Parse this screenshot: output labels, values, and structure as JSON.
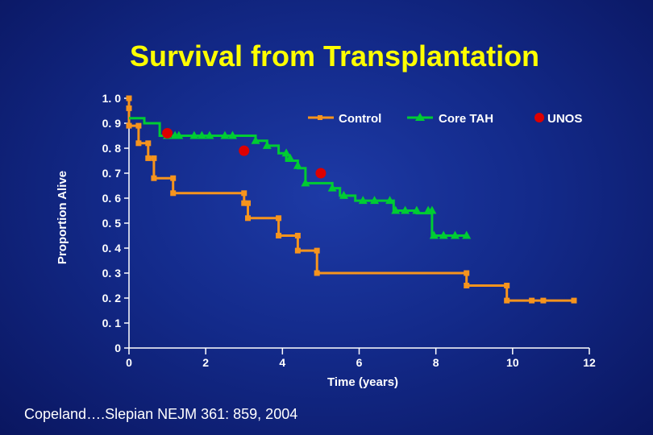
{
  "chart_data": {
    "type": "line",
    "title": "Survival from Transplantation",
    "xlabel": "Time (years)",
    "ylabel": "Proportion Alive",
    "xlim": [
      0,
      12
    ],
    "ylim": [
      0,
      1.0
    ],
    "x_ticks": [
      {
        "value": 0,
        "label": "0"
      },
      {
        "value": 2,
        "label": "2"
      },
      {
        "value": 4,
        "label": "4"
      },
      {
        "value": 6,
        "label": "6"
      },
      {
        "value": 8,
        "label": "8"
      },
      {
        "value": 10,
        "label": "10"
      },
      {
        "value": 12,
        "label": "12"
      }
    ],
    "y_ticks": [
      {
        "value": 0,
        "label": "0"
      },
      {
        "value": 0.1,
        "label": "0. 1"
      },
      {
        "value": 0.2,
        "label": "0. 2"
      },
      {
        "value": 0.3,
        "label": "0. 3"
      },
      {
        "value": 0.4,
        "label": "0. 4"
      },
      {
        "value": 0.5,
        "label": "0. 5"
      },
      {
        "value": 0.6,
        "label": "0. 6"
      },
      {
        "value": 0.7,
        "label": "0. 7"
      },
      {
        "value": 0.8,
        "label": "0. 8"
      },
      {
        "value": 0.9,
        "label": "0. 9"
      },
      {
        "value": 1.0,
        "label": "1. 0"
      }
    ],
    "legend_position": "top-right",
    "series": [
      {
        "name": "Control",
        "color": "#f7941d",
        "marker": "square",
        "steps": [
          [
            0,
            1.0
          ],
          [
            0,
            0.96
          ],
          [
            0,
            0.89
          ],
          [
            0.25,
            0.89
          ],
          [
            0.25,
            0.82
          ],
          [
            0.5,
            0.82
          ],
          [
            0.5,
            0.76
          ],
          [
            0.65,
            0.76
          ],
          [
            0.65,
            0.68
          ],
          [
            1.15,
            0.68
          ],
          [
            1.15,
            0.62
          ],
          [
            3.0,
            0.62
          ],
          [
            3.0,
            0.58
          ],
          [
            3.1,
            0.58
          ],
          [
            3.1,
            0.52
          ],
          [
            3.9,
            0.52
          ],
          [
            3.9,
            0.45
          ],
          [
            4.4,
            0.45
          ],
          [
            4.4,
            0.39
          ],
          [
            4.9,
            0.39
          ],
          [
            4.9,
            0.3
          ],
          [
            8.8,
            0.3
          ],
          [
            8.8,
            0.25
          ],
          [
            9.85,
            0.25
          ],
          [
            9.85,
            0.19
          ],
          [
            11.6,
            0.19
          ]
        ],
        "markers": [
          [
            0,
            1.0
          ],
          [
            0,
            0.96
          ],
          [
            0,
            0.89
          ],
          [
            0.25,
            0.89
          ],
          [
            0.25,
            0.82
          ],
          [
            0.5,
            0.82
          ],
          [
            0.5,
            0.76
          ],
          [
            0.65,
            0.76
          ],
          [
            0.65,
            0.68
          ],
          [
            1.15,
            0.68
          ],
          [
            1.15,
            0.62
          ],
          [
            3.0,
            0.62
          ],
          [
            3.0,
            0.58
          ],
          [
            3.1,
            0.58
          ],
          [
            3.1,
            0.52
          ],
          [
            3.9,
            0.52
          ],
          [
            3.9,
            0.45
          ],
          [
            4.4,
            0.45
          ],
          [
            4.4,
            0.39
          ],
          [
            4.9,
            0.39
          ],
          [
            4.9,
            0.3
          ],
          [
            8.8,
            0.3
          ],
          [
            8.8,
            0.25
          ],
          [
            9.85,
            0.25
          ],
          [
            9.85,
            0.19
          ],
          [
            10.5,
            0.19
          ],
          [
            10.8,
            0.19
          ],
          [
            11.6,
            0.19
          ]
        ]
      },
      {
        "name": "Core TAH",
        "color": "#00cc33",
        "marker": "triangle",
        "steps": [
          [
            0,
            0.92
          ],
          [
            0.4,
            0.92
          ],
          [
            0.4,
            0.9
          ],
          [
            0.8,
            0.9
          ],
          [
            0.8,
            0.85
          ],
          [
            3.3,
            0.85
          ],
          [
            3.3,
            0.83
          ],
          [
            3.6,
            0.83
          ],
          [
            3.6,
            0.81
          ],
          [
            3.9,
            0.81
          ],
          [
            3.9,
            0.78
          ],
          [
            4.1,
            0.78
          ],
          [
            4.1,
            0.75
          ],
          [
            4.4,
            0.75
          ],
          [
            4.4,
            0.72
          ],
          [
            4.6,
            0.72
          ],
          [
            4.6,
            0.66
          ],
          [
            5.3,
            0.66
          ],
          [
            5.3,
            0.64
          ],
          [
            5.5,
            0.64
          ],
          [
            5.5,
            0.61
          ],
          [
            5.9,
            0.61
          ],
          [
            5.9,
            0.59
          ],
          [
            6.9,
            0.59
          ],
          [
            6.9,
            0.55
          ],
          [
            7.5,
            0.55
          ],
          [
            7.5,
            0.54
          ],
          [
            7.9,
            0.54
          ],
          [
            7.9,
            0.45
          ],
          [
            8.8,
            0.45
          ]
        ],
        "markers": [
          [
            1.0,
            0.85
          ],
          [
            1.2,
            0.85
          ],
          [
            1.3,
            0.85
          ],
          [
            1.7,
            0.85
          ],
          [
            1.9,
            0.85
          ],
          [
            2.1,
            0.85
          ],
          [
            2.5,
            0.85
          ],
          [
            2.7,
            0.85
          ],
          [
            3.3,
            0.83
          ],
          [
            3.6,
            0.81
          ],
          [
            4.1,
            0.78
          ],
          [
            4.2,
            0.76
          ],
          [
            4.4,
            0.73
          ],
          [
            4.6,
            0.66
          ],
          [
            5.3,
            0.64
          ],
          [
            5.6,
            0.61
          ],
          [
            6.1,
            0.59
          ],
          [
            6.4,
            0.59
          ],
          [
            6.8,
            0.59
          ],
          [
            6.95,
            0.55
          ],
          [
            7.2,
            0.55
          ],
          [
            7.5,
            0.55
          ],
          [
            7.8,
            0.55
          ],
          [
            7.9,
            0.55
          ],
          [
            7.95,
            0.45
          ],
          [
            8.2,
            0.45
          ],
          [
            8.5,
            0.45
          ],
          [
            8.8,
            0.45
          ]
        ]
      },
      {
        "name": "UNOS",
        "color": "#dd0000",
        "marker": "circle",
        "points": [
          [
            1.0,
            0.86
          ],
          [
            3.0,
            0.79
          ],
          [
            5.0,
            0.7
          ]
        ]
      }
    ]
  },
  "citation": "Copeland….Slepian  NEJM  361: 859, 2004"
}
